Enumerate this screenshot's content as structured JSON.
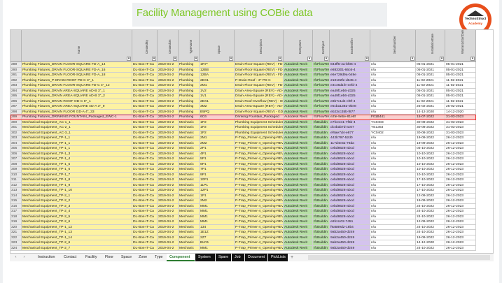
{
  "slide": {
    "title": "Facility Management using COBie data",
    "logo_line1": "TechnoStruct",
    "logo_line2": "Academy",
    "accent_color": "#7cc623",
    "logo_color": "#e84e1b"
  },
  "columns": [
    "Name",
    "CreatedBy",
    "CreatedOn",
    "TypeName",
    "Space",
    "Description",
    "ExtSystem",
    "ExtObject",
    "ExtIdentifier",
    "SerialNumber",
    "InstallationDate",
    "WarrantyStartDate"
  ],
  "rows": [
    {
      "n": "289",
      "c": [
        "Plumbing Fixtures_DRAIN FLOOR-SQUARE FD-A_14",
        "DL-Bos-IT-Ca",
        "2019-04-2",
        "Plumbing",
        "1R7*",
        "Drain-Floor-Square (REV) - FD-A",
        "Autodesk Revit",
        "IfcFlowTer",
        "844ff6-4a-bf36-4",
        "n/a",
        "05-01-2021",
        "05-01-2021"
      ]
    },
    {
      "n": "290",
      "c": [
        "Plumbing Fixtures_DRAIN FLOOR-SQUARE FD-A_16",
        "DL-Bos-IT-Ca",
        "2019-04-2",
        "Plumbing",
        "12BB",
        "Drain-Floor-Square (REV) - FD-A",
        "Autodesk Revit",
        "IfcFlowTer",
        "e883301-66c6-4",
        "n/a",
        "05-01-2021",
        "05-01-2021"
      ]
    },
    {
      "n": "291",
      "c": [
        "Plumbing Fixtures_DRAIN FLOOR-SQUARE FD-A_18",
        "DL-Bos-IT-Ca",
        "2019-04-2",
        "Plumbing",
        "12BA",
        "Drain-Floor-Square (REV) - FD-A",
        "Autodesk Revit",
        "IfcFlowTer",
        "e6e729d9a-b49e",
        "n/a",
        "05-01-2021",
        "05-01-2021"
      ]
    },
    {
      "n": "292",
      "c": [
        "Plumbing Fixtures_P DRAIN-ROOF PD-C 3\"_1",
        "DL-Bos-IT-Ca",
        "2019-04-2",
        "Plumbing",
        "2EX1",
        "P-Drain-Roof - 3\" PD-C",
        "Autodesk Revit",
        "IfcFlowTer",
        "210102fe-d645-4",
        "n/a",
        "11-02-2021",
        "11-02-2021"
      ]
    },
    {
      "n": "293",
      "c": [
        "Plumbing Fixtures_DRAIN FLOOR-SQUARE FD-C 4\"_12",
        "DL-Bos-IT-Ca",
        "2019-04-2",
        "Plumbing",
        "2M1",
        "Drain-Floor-Square (REV) - FD-C",
        "Autodesk Revit",
        "IfcFlowTer",
        "e3c46d1fe-eefd-4",
        "n/a",
        "11-02-2021",
        "11-02-2021"
      ]
    },
    {
      "n": "294",
      "c": [
        "Plumbing Fixtures_DRAIN AREA-SQUARE AD-B 3\"_1",
        "DL-Bos-IT-Ca",
        "2019-04-2",
        "Plumbing",
        "1V2",
        "Drain-Area-Square (REV) - AD-B",
        "Autodesk Revit",
        "IfcFlowTer",
        "ea49f1eb6-d325",
        "n/a",
        "05-01-2021",
        "05-01-2021"
      ]
    },
    {
      "n": "295",
      "c": [
        "Plumbing Fixtures_DRAIN AREA-SQUARE AD-B 3\"_2",
        "DL-Bos-IT-Ca",
        "2019-04-2",
        "Plumbing",
        "1V1",
        "Drain-Area-Square (REV) - AD-B",
        "Autodesk Revit",
        "IfcFlowTer",
        "ea49f1eb6-d325",
        "n/a",
        "05-01-2021",
        "05-01-2021"
      ]
    },
    {
      "n": "296",
      "c": [
        "Plumbing Fixtures_DRAIN ROOF OD-C 6\"_1",
        "DL-Bos-IT-Ca",
        "2019-04-2",
        "Plumbing",
        "2EX1",
        "Drain-Roof-Overflow (REV) - OD-C",
        "Autodesk Revit",
        "IfcFlowTer",
        "e8b7c1d4-cf0f-4",
        "n/a",
        "11-02-2021",
        "11-02-2021"
      ]
    },
    {
      "n": "297",
      "c": [
        "Plumbing Fixtures_DRAIN AREA-SQUARE AD-A 3\"_9",
        "DL-Bos-IT-Ca",
        "2019-04-2",
        "Plumbing",
        "3M2",
        "Drain-Area-Square (REV) - AD-A",
        "Autodesk Revit",
        "IfcFlowTer",
        "e5cba1382-0be8",
        "n/a",
        "25-02-2021",
        "25-02-2021"
      ]
    },
    {
      "n": "298",
      "c": [
        "Plumbing Fixtures_DRAIN FLOOR GD-A 4\"_33",
        "DL-Bos-IT-Ca",
        "2019-04-2",
        "Plumbing",
        "B5PQ",
        "Drain-Floor-Square (REV) - GD-A",
        "Autodesk Revit",
        "IfcFlowTer",
        "eb23cc35b-f877",
        "n/a",
        "14-12-2020",
        "14-12-2020"
      ]
    },
    {
      "n": "299",
      "c": [
        "Plumbing Fixtures_DRINKING FOUNTAIN_Packaged_EWC-1",
        "DL-Bos-IT-Ca",
        "2019-04-2",
        "Plumbing",
        "6C6",
        "Drinking Fountain_Packaged",
        "Autodesk Revit",
        "IfcFlowTer",
        "e2fe-9ebe-81e8f",
        "F01B441",
        "15-07-2022",
        "31-03-2023"
      ],
      "hl": true
    },
    {
      "n": "300",
      "c": [
        "Mechanical Equipment_AC-1_1",
        "DL-Bos-IT-Ca",
        "2019-04-2",
        "Mechanic",
        "1P2",
        "Plumbing Equipment Scheduler R",
        "Autodesk Revit",
        "IfcBuildin",
        "e7fcee41-7f6b-4",
        "YC0403",
        "30-08-2022",
        "31-03-2023"
      ]
    },
    {
      "n": "301",
      "c": [
        "Mechanical Equipment_AC-2_1",
        "DL-Bos-IT-Ca",
        "2019-04-2",
        "Mechanic",
        "1P2",
        "Plumbing Equipment Scheduler R",
        "Autodesk Revit",
        "IfcBuildin",
        "dc4bab7d-ac67",
        "YE1354",
        "30-08-2022",
        "31-03-2023"
      ]
    },
    {
      "n": "302",
      "c": [
        "Mechanical Equipment_AC-3_1",
        "DL-Bos-IT-Ca",
        "2019-04-2",
        "Mechanic",
        "1P2",
        "Plumbing Equipment Scheduler R",
        "Autodesk Revit",
        "IfcBuildin",
        "ef9ae7d4-e877",
        "YC0402",
        "30-08-2022",
        "31-03-2023"
      ]
    },
    {
      "n": "303",
      "c": [
        "Mechanical Equipment_TP-1_1",
        "DL-Bos-IT-Ca",
        "2019-04-2",
        "Mechanic",
        "2M1",
        "P-Trap_Primer-4_Opening-REV",
        "Autodesk Revit",
        "IfcBuildin",
        "442b797-52d0",
        "n/a",
        "19-09-2022",
        "26-12-2023"
      ]
    },
    {
      "n": "304",
      "c": [
        "Mechanical Equipment_TP-1_1",
        "DL-Bos-IT-Ca",
        "2019-04-2",
        "Mechanic",
        "2M2",
        "P-Trap_Primer-4_Opening-REV",
        "Autodesk Revit",
        "IfcBuildin",
        "117d4e3a-76da",
        "n/a",
        "19-09-2022",
        "26-12-2023"
      ]
    },
    {
      "n": "305",
      "c": [
        "Mechanical Equipment_TP-1_1",
        "DL-Bos-IT-Ca",
        "2019-04-2",
        "Mechanic",
        "2P1",
        "P-Trap_Primer-4_Opening-REV",
        "Autodesk Revit",
        "IfcBuildin",
        "cebd8628-abcd",
        "n/a",
        "03-10-2022",
        "26-12-2023"
      ]
    },
    {
      "n": "306",
      "c": [
        "Mechanical Equipment_TP-1_3",
        "DL-Bos-IT-Ca",
        "2019-04-2",
        "Mechanic",
        "4P1",
        "P-Trap_Primer-4_Opening-REV",
        "Autodesk Revit",
        "IfcBuildin",
        "cebd8628-abcd",
        "n/a",
        "10-10-2022",
        "26-12-2023"
      ]
    },
    {
      "n": "307",
      "c": [
        "Mechanical Equipment_TP-1_4",
        "DL-Bos-IT-Ca",
        "2019-04-2",
        "Mechanic",
        "5P1",
        "P-Trap_Primer-4_Opening-REV",
        "Autodesk Revit",
        "IfcBuildin",
        "cebd8628-abcd",
        "n/a",
        "10-10-2022",
        "26-12-2023"
      ]
    },
    {
      "n": "308",
      "c": [
        "Mechanical Equipment_TP-1_5",
        "DL-Bos-IT-Ca",
        "2019-04-2",
        "Mechanic",
        "6P1",
        "P-Trap_Primer-4_Opening-REV",
        "Autodesk Revit",
        "IfcBuildin",
        "cebd8628-abcd",
        "n/a",
        "10-10-2022",
        "26-12-2023"
      ]
    },
    {
      "n": "309",
      "c": [
        "Mechanical Equipment_TP-1_6",
        "DL-Bos-IT-Ca",
        "2019-04-2",
        "Mechanic",
        "7P1",
        "P-Trap_Primer-4_Opening-REV",
        "Autodesk Revit",
        "IfcBuildin",
        "cebd8628-abcd",
        "n/a",
        "10-10-2022",
        "26-12-2023"
      ]
    },
    {
      "n": "310",
      "c": [
        "Mechanical Equipment_TP-1_7",
        "DL-Bos-IT-Ca",
        "2019-04-2",
        "Mechanic",
        "9P1",
        "P-Trap_Primer-4_Opening-REV",
        "Autodesk Revit",
        "IfcBuildin",
        "cebd8628-abcd",
        "n/a",
        "10-10-2022",
        "26-12-2023"
      ]
    },
    {
      "n": "311",
      "c": [
        "Mechanical Equipment_TP-1_8",
        "DL-Bos-IT-Ca",
        "2019-04-2",
        "Mechanic",
        "10P1",
        "P-Trap_Primer-4_Opening-REV",
        "Autodesk Revit",
        "IfcBuildin",
        "cebd8628-abcd",
        "n/a",
        "17-10-2022",
        "26-12-2023"
      ]
    },
    {
      "n": "312",
      "c": [
        "Mechanical Equipment_TP-1_9",
        "DL-Bos-IT-Ca",
        "2019-04-2",
        "Mechanic",
        "11P1",
        "P-Trap_Primer-4_Opening-REV",
        "Autodesk Revit",
        "IfcBuildin",
        "cebd8628-abcd",
        "n/a",
        "17-10-2022",
        "26-12-2023"
      ]
    },
    {
      "n": "313",
      "c": [
        "Mechanical Equipment_TP-1_10",
        "DL-Bos-IT-Ca",
        "2019-04-2",
        "Mechanic",
        "12P1",
        "P-Trap_Primer-4_Opening-REV",
        "Autodesk Revit",
        "IfcBuildin",
        "cebd8628-abcd",
        "n/a",
        "17-10-2022",
        "26-12-2023"
      ]
    },
    {
      "n": "314",
      "c": [
        "Mechanical Equipment_TP-2_1",
        "DL-Bos-IT-Ca",
        "2019-04-2",
        "Mechanic",
        "1P1",
        "P-Trap_Primer-4_Opening-REV",
        "Autodesk Revit",
        "IfcBuildin",
        "cebd8628-abcd",
        "n/a",
        "12-09-2022",
        "26-12-2023"
      ]
    },
    {
      "n": "315",
      "c": [
        "Mechanical Equipment_TP-2_2",
        "DL-Bos-IT-Ca",
        "2019-04-2",
        "Mechanic",
        "2M2",
        "P-Trap_Primer-4_Opening-REV",
        "Autodesk Revit",
        "IfcBuildin",
        "cebd8628-abcd",
        "n/a",
        "19-09-2022",
        "26-12-2023"
      ]
    },
    {
      "n": "316",
      "c": [
        "Mechanical Equipment_TP-2_3",
        "DL-Bos-IT-Ca",
        "2019-04-2",
        "Mechanic",
        "MM1",
        "P-Trap_Primer-4_Opening-REV",
        "Autodesk Revit",
        "IfcBuildin",
        "cebd8628-abcd",
        "n/a",
        "24-10-2022",
        "26-12-2023"
      ]
    },
    {
      "n": "317",
      "c": [
        "Mechanical Equipment_TP-2_4",
        "DL-Bos-IT-Ca",
        "2019-04-2",
        "Mechanic",
        "MM1",
        "P-Trap_Primer-4_Opening-REV",
        "Autodesk Revit",
        "IfcBuildin",
        "cebd8628-abcd",
        "n/a",
        "24-10-2022",
        "26-12-2023"
      ]
    },
    {
      "n": "318",
      "c": [
        "Mechanical Equipment_TP-2_5",
        "DL-Bos-IT-Ca",
        "2019-04-2",
        "Mechanic",
        "MM1",
        "P-Trap_Primer-4_Opening-REV",
        "Autodesk Revit",
        "IfcBuildin",
        "cebd8628-abcd",
        "n/a",
        "24-10-2022",
        "26-12-2023"
      ]
    },
    {
      "n": "319",
      "c": [
        "Mechanical Equipment_TP-2_6",
        "DL-Bos-IT-Ca",
        "2019-04-2",
        "Mechanic",
        "MM1",
        "P-Trap_Primer-4_Opening-REV",
        "Autodesk Revit",
        "IfcBuildin",
        "e9fc4c02-7451",
        "n/a",
        "12-09-2022",
        "26-12-2023"
      ]
    },
    {
      "n": "320",
      "c": [
        "Mechanical Equipment_TP-1_12",
        "DL-Bos-IT-Ca",
        "2019-04-2",
        "Mechanic",
        "134",
        "P-Trap_Primer-4_Opening-REV",
        "Autodesk Revit",
        "IfcBuildin",
        "f9a589d2-18b4",
        "n/a",
        "24-10-2022",
        "26-12-2023"
      ]
    },
    {
      "n": "321",
      "c": [
        "Mechanical Equipment_TP-1_13",
        "DL-Bos-IT-Ca",
        "2019-04-2",
        "Mechanic",
        "1E1Z",
        "P-Trap_Primer-4_Opening-REV",
        "Autodesk Revit",
        "IfcBuildin",
        "9ab2a450-d249",
        "n/a",
        "24-10-2022",
        "26-12-2023"
      ]
    },
    {
      "n": "322",
      "c": [
        "Mechanical Equipment_TP-1_14",
        "DL-Bos-IT-Ca",
        "2019-04-2",
        "Mechanic",
        "2Z7",
        "P-Trap_Primer-4_Opening-REV",
        "Autodesk Revit",
        "IfcBuildin",
        "9ab2a450-d249",
        "n/a",
        "19-09-2022",
        "26-12-2023"
      ]
    },
    {
      "n": "323",
      "c": [
        "Mechanical Equipment_TP-2_6",
        "DL-Bos-IT-Ca",
        "2019-04-2",
        "Mechanic",
        "BLR1",
        "P-Trap_Primer-4_Opening-REV",
        "Autodesk Revit",
        "IfcBuildin",
        "9ab2a450-d249",
        "n/a",
        "14-12-2020",
        "26-12-2023"
      ]
    },
    {
      "n": "324",
      "c": [
        "Mechanical Equipment_TP-2_7",
        "DL-Bos-IT-Ca",
        "2019-04-2",
        "Mechanic",
        "MM1",
        "P-Trap_Primer-4_Opening-REV",
        "Autodesk Revit",
        "IfcBuildin",
        "9ab2a450-d249",
        "n/a",
        "24-10-2022",
        "26-12-2023"
      ]
    }
  ],
  "tabs": [
    "Instruction",
    "Contact",
    "Facility",
    "Floor",
    "Space",
    "Zone",
    "Type",
    "Component",
    "System",
    "Spare",
    "Job",
    "Document",
    "PickLists"
  ],
  "active_tab": "Component",
  "nav_prev": "‹",
  "nav_next": "›",
  "add_tab": "+"
}
